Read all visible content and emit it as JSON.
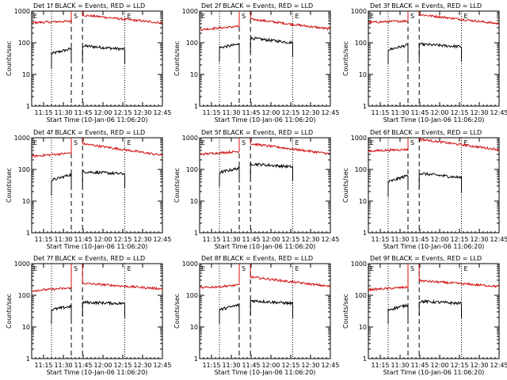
{
  "figure": {
    "series_colors": {
      "events": "#000000",
      "lld": "#d01010"
    },
    "marker_letters": [
      "E",
      "S",
      "E"
    ]
  },
  "chart_data": [
    {
      "type": "line",
      "title": "Det 1f BLACK = Events, RED = LLD",
      "xlabel": "Start Time (10-Jan-06 11:06:20)",
      "ylabel": "Counts/sec",
      "x_tick_labels": [
        "11:15",
        "11:30",
        "11:45",
        "12:00",
        "12:15",
        "12:30",
        "12:45"
      ],
      "xlim_minutes": [
        0,
        99
      ],
      "x_ticks_minutes": [
        9,
        24,
        39,
        54,
        69,
        84,
        99
      ],
      "y_scale": "log",
      "ylim": [
        1,
        1000
      ],
      "y_tick_labels": [
        "1",
        "10",
        "100",
        "1000"
      ],
      "vlines": {
        "dotted_minutes": [
          15,
          70.5
        ],
        "dashed_minutes": [
          30,
          38.5
        ]
      },
      "series": [
        {
          "name": "Events",
          "segments": [
            {
              "x_start": 15,
              "x_end": 30,
              "y_start": 45,
              "y_end": 65
            },
            {
              "x_start": 38.5,
              "x_end": 70.5,
              "y_start": 80,
              "y_end": 62
            }
          ]
        },
        {
          "name": "LLD",
          "segments": [
            {
              "x_start": 0,
              "x_end": 30,
              "y_start": 430,
              "y_end": 480
            },
            {
              "x_start": 38.5,
              "x_end": 99,
              "y_start": 750,
              "y_end": 420
            }
          ]
        }
      ]
    },
    {
      "type": "line",
      "title": "Det 2f BLACK = Events, RED = LLD",
      "xlabel": "Start Time (10-Jan-06 11:06:20)",
      "ylabel": "Counts/sec",
      "x_tick_labels": [
        "11:15",
        "11:30",
        "11:45",
        "12:00",
        "12:15",
        "12:30",
        "12:45"
      ],
      "xlim_minutes": [
        0,
        99
      ],
      "x_ticks_minutes": [
        9,
        24,
        39,
        54,
        69,
        84,
        99
      ],
      "y_scale": "log",
      "ylim": [
        1,
        1000
      ],
      "y_tick_labels": [
        "1",
        "10",
        "100",
        "1000"
      ],
      "vlines": {
        "dotted_minutes": [
          15,
          70.5
        ],
        "dashed_minutes": [
          30,
          38.5
        ]
      },
      "series": [
        {
          "name": "Events",
          "segments": [
            {
              "x_start": 15,
              "x_end": 30,
              "y_start": 70,
              "y_end": 90
            },
            {
              "x_start": 38.5,
              "x_end": 70.5,
              "y_start": 140,
              "y_end": 100
            }
          ]
        },
        {
          "name": "LLD",
          "segments": [
            {
              "x_start": 0,
              "x_end": 30,
              "y_start": 260,
              "y_end": 330
            },
            {
              "x_start": 38.5,
              "x_end": 99,
              "y_start": 560,
              "y_end": 270
            }
          ]
        }
      ]
    },
    {
      "type": "line",
      "title": "Det 3f BLACK = Events, RED = LLD",
      "xlabel": "Start Time (10-Jan-06 11:06:20)",
      "ylabel": "Counts/sec",
      "x_tick_labels": [
        "11:15",
        "11:30",
        "11:45",
        "12:00",
        "12:15",
        "12:30",
        "12:45"
      ],
      "xlim_minutes": [
        0,
        99
      ],
      "x_ticks_minutes": [
        9,
        24,
        39,
        54,
        69,
        84,
        99
      ],
      "y_scale": "log",
      "ylim": [
        1,
        1000
      ],
      "y_tick_labels": [
        "1",
        "10",
        "100",
        "1000"
      ],
      "vlines": {
        "dotted_minutes": [
          15,
          70.5
        ],
        "dashed_minutes": [
          30,
          38.5
        ]
      },
      "series": [
        {
          "name": "Events",
          "segments": [
            {
              "x_start": 15,
              "x_end": 30,
              "y_start": 60,
              "y_end": 85
            },
            {
              "x_start": 38.5,
              "x_end": 70.5,
              "y_start": 90,
              "y_end": 75
            }
          ]
        },
        {
          "name": "LLD",
          "segments": [
            {
              "x_start": 0,
              "x_end": 30,
              "y_start": 440,
              "y_end": 490
            },
            {
              "x_start": 38.5,
              "x_end": 99,
              "y_start": 780,
              "y_end": 400
            }
          ]
        }
      ]
    },
    {
      "type": "line",
      "title": "Det 4f BLACK = Events, RED = LLD",
      "xlabel": "Start Time (10-Jan-06 11:06:20)",
      "ylabel": "Counts/sec",
      "x_tick_labels": [
        "11:15",
        "11:30",
        "11:45",
        "12:00",
        "12:15",
        "12:30",
        "12:45"
      ],
      "xlim_minutes": [
        0,
        99
      ],
      "x_ticks_minutes": [
        9,
        24,
        39,
        54,
        69,
        84,
        99
      ],
      "y_scale": "log",
      "ylim": [
        1,
        1000
      ],
      "y_tick_labels": [
        "1",
        "10",
        "100",
        "1000"
      ],
      "vlines": {
        "dotted_minutes": [
          15,
          70.5
        ],
        "dashed_minutes": [
          30,
          38.5
        ]
      },
      "series": [
        {
          "name": "Events",
          "segments": [
            {
              "x_start": 15,
              "x_end": 30,
              "y_start": 45,
              "y_end": 70
            },
            {
              "x_start": 38.5,
              "x_end": 70.5,
              "y_start": 85,
              "y_end": 72
            }
          ]
        },
        {
          "name": "LLD",
          "segments": [
            {
              "x_start": 0,
              "x_end": 30,
              "y_start": 260,
              "y_end": 330
            },
            {
              "x_start": 38.5,
              "x_end": 99,
              "y_start": 650,
              "y_end": 280
            }
          ]
        }
      ]
    },
    {
      "type": "line",
      "title": "Det 5f BLACK = Events, RED = LLD",
      "xlabel": "Start Time (10-Jan-06 11:06:20)",
      "ylabel": "Counts/sec",
      "x_tick_labels": [
        "11:15",
        "11:30",
        "11:45",
        "12:00",
        "12:15",
        "12:30",
        "12:45"
      ],
      "xlim_minutes": [
        0,
        99
      ],
      "x_ticks_minutes": [
        9,
        24,
        39,
        54,
        69,
        84,
        99
      ],
      "y_scale": "log",
      "ylim": [
        1,
        1000
      ],
      "y_tick_labels": [
        "1",
        "10",
        "100",
        "1000"
      ],
      "vlines": {
        "dotted_minutes": [
          15,
          70.5
        ],
        "dashed_minutes": [
          30,
          38.5
        ]
      },
      "series": [
        {
          "name": "Events",
          "segments": [
            {
              "x_start": 15,
              "x_end": 30,
              "y_start": 80,
              "y_end": 110
            },
            {
              "x_start": 38.5,
              "x_end": 70.5,
              "y_start": 150,
              "y_end": 120
            }
          ]
        },
        {
          "name": "LLD",
          "segments": [
            {
              "x_start": 0,
              "x_end": 30,
              "y_start": 300,
              "y_end": 370
            },
            {
              "x_start": 38.5,
              "x_end": 99,
              "y_start": 650,
              "y_end": 310
            }
          ]
        }
      ]
    },
    {
      "type": "line",
      "title": "Det 6f BLACK = Events, RED = LLD",
      "xlabel": "Start Time (10-Jan-06 11:06:20)",
      "ylabel": "Counts/sec",
      "x_tick_labels": [
        "11:15",
        "11:30",
        "11:45",
        "12:00",
        "12:15",
        "12:30",
        "12:45"
      ],
      "xlim_minutes": [
        0,
        99
      ],
      "x_ticks_minutes": [
        9,
        24,
        39,
        54,
        69,
        84,
        99
      ],
      "y_scale": "log",
      "ylim": [
        1,
        1000
      ],
      "y_tick_labels": [
        "1",
        "10",
        "100",
        "1000"
      ],
      "vlines": {
        "dotted_minutes": [
          15,
          70.5
        ],
        "dashed_minutes": [
          30,
          38.5
        ]
      },
      "series": [
        {
          "name": "Events",
          "segments": [
            {
              "x_start": 15,
              "x_end": 30,
              "y_start": 40,
              "y_end": 65
            },
            {
              "x_start": 38.5,
              "x_end": 70.5,
              "y_start": 75,
              "y_end": 55
            }
          ]
        },
        {
          "name": "LLD",
          "segments": [
            {
              "x_start": 0,
              "x_end": 30,
              "y_start": 380,
              "y_end": 430
            },
            {
              "x_start": 38.5,
              "x_end": 99,
              "y_start": 900,
              "y_end": 420
            }
          ]
        }
      ]
    },
    {
      "type": "line",
      "title": "Det 7f BLACK = Events, RED = LLD",
      "xlabel": "Start Time (10-Jan-06 11:06:20)",
      "ylabel": "Counts/sec",
      "x_tick_labels": [
        "11:15",
        "11:30",
        "11:45",
        "12:00",
        "12:15",
        "12:30",
        "12:45"
      ],
      "xlim_minutes": [
        0,
        99
      ],
      "x_ticks_minutes": [
        9,
        24,
        39,
        54,
        69,
        84,
        99
      ],
      "y_scale": "log",
      "ylim": [
        1,
        1000
      ],
      "y_tick_labels": [
        "1",
        "10",
        "100",
        "1000"
      ],
      "vlines": {
        "dotted_minutes": [
          15,
          70.5
        ],
        "dashed_minutes": [
          30,
          38.5
        ]
      },
      "series": [
        {
          "name": "Events",
          "segments": [
            {
              "x_start": 15,
              "x_end": 30,
              "y_start": 35,
              "y_end": 45
            },
            {
              "x_start": 38.5,
              "x_end": 70.5,
              "y_start": 60,
              "y_end": 55
            }
          ]
        },
        {
          "name": "LLD",
          "segments": [
            {
              "x_start": 0,
              "x_end": 30,
              "y_start": 140,
              "y_end": 170
            },
            {
              "x_start": 38.5,
              "x_end": 99,
              "y_start": 240,
              "y_end": 160
            }
          ]
        }
      ]
    },
    {
      "type": "line",
      "title": "Det 8f BLACK = Events, RED = LLD",
      "xlabel": "Start Time (10-Jan-06 11:06:20)",
      "ylabel": "Counts/sec",
      "x_tick_labels": [
        "11:15",
        "11:30",
        "11:45",
        "12:00",
        "12:15",
        "12:30",
        "12:45"
      ],
      "xlim_minutes": [
        0,
        99
      ],
      "x_ticks_minutes": [
        9,
        24,
        39,
        54,
        69,
        84,
        99
      ],
      "y_scale": "log",
      "ylim": [
        1,
        1000
      ],
      "y_tick_labels": [
        "1",
        "10",
        "100",
        "1000"
      ],
      "vlines": {
        "dotted_minutes": [
          15,
          70.5
        ],
        "dashed_minutes": [
          30,
          38.5
        ]
      },
      "series": [
        {
          "name": "Events",
          "segments": [
            {
              "x_start": 15,
              "x_end": 30,
              "y_start": 35,
              "y_end": 50
            },
            {
              "x_start": 38.5,
              "x_end": 70.5,
              "y_start": 68,
              "y_end": 55
            }
          ]
        },
        {
          "name": "LLD",
          "segments": [
            {
              "x_start": 0,
              "x_end": 30,
              "y_start": 170,
              "y_end": 210
            },
            {
              "x_start": 38.5,
              "x_end": 99,
              "y_start": 380,
              "y_end": 190
            }
          ]
        }
      ]
    },
    {
      "type": "line",
      "title": "Det 9f BLACK = Events, RED = LLD",
      "xlabel": "Start Time (10-Jan-06 11:06:20)",
      "ylabel": "Counts/sec",
      "x_tick_labels": [
        "11:15",
        "11:30",
        "11:45",
        "12:00",
        "12:15",
        "12:30",
        "12:45"
      ],
      "xlim_minutes": [
        0,
        99
      ],
      "x_ticks_minutes": [
        9,
        24,
        39,
        54,
        69,
        84,
        99
      ],
      "y_scale": "log",
      "ylim": [
        1,
        1000
      ],
      "y_tick_labels": [
        "1",
        "10",
        "100",
        "1000"
      ],
      "vlines": {
        "dotted_minutes": [
          15,
          70.5
        ],
        "dashed_minutes": [
          30,
          38.5
        ]
      },
      "series": [
        {
          "name": "Events",
          "segments": [
            {
              "x_start": 15,
              "x_end": 30,
              "y_start": 35,
              "y_end": 50
            },
            {
              "x_start": 38.5,
              "x_end": 70.5,
              "y_start": 65,
              "y_end": 55
            }
          ]
        },
        {
          "name": "LLD",
          "segments": [
            {
              "x_start": 0,
              "x_end": 30,
              "y_start": 150,
              "y_end": 180
            },
            {
              "x_start": 38.5,
              "x_end": 99,
              "y_start": 290,
              "y_end": 190
            }
          ]
        }
      ]
    }
  ]
}
